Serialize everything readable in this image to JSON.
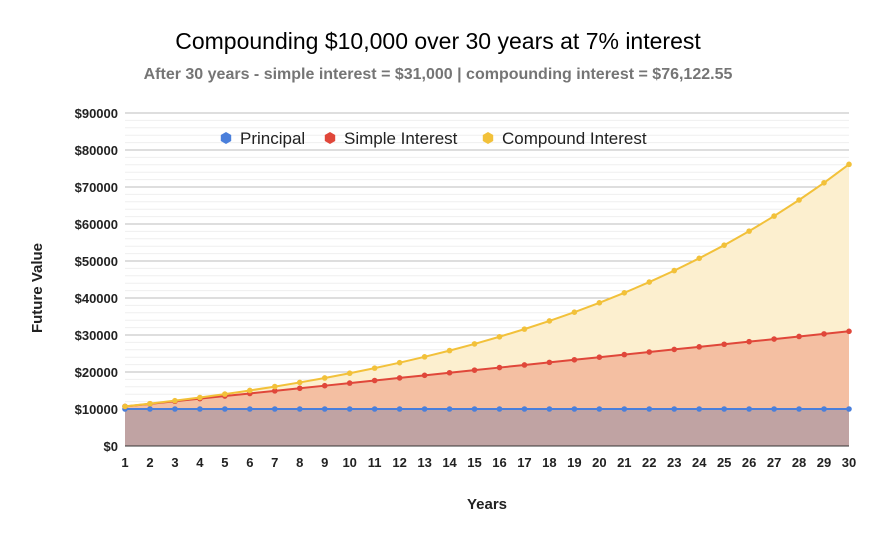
{
  "chart_data": {
    "type": "area",
    "title": "Compounding $10,000 over 30 years at 7% interest",
    "subtitle": "After 30 years  - simple interest = $31,000 | compounding interest = $76,122.55",
    "xlabel": "Years",
    "ylabel": "Future Value",
    "ylim": [
      0,
      90000
    ],
    "y_ticks": [
      "$0",
      "$10000",
      "$20000",
      "$30000",
      "$40000",
      "$50000",
      "$60000",
      "$70000",
      "$80000",
      "$90000"
    ],
    "x": [
      1,
      2,
      3,
      4,
      5,
      6,
      7,
      8,
      9,
      10,
      11,
      12,
      13,
      14,
      15,
      16,
      17,
      18,
      19,
      20,
      21,
      22,
      23,
      24,
      25,
      26,
      27,
      28,
      29,
      30
    ],
    "legend_position": "top",
    "grid": true,
    "series": [
      {
        "name": "Principal",
        "color": "#4a7fdb",
        "fill": "#c0a3a3",
        "values": [
          10000,
          10000,
          10000,
          10000,
          10000,
          10000,
          10000,
          10000,
          10000,
          10000,
          10000,
          10000,
          10000,
          10000,
          10000,
          10000,
          10000,
          10000,
          10000,
          10000,
          10000,
          10000,
          10000,
          10000,
          10000,
          10000,
          10000,
          10000,
          10000,
          10000
        ]
      },
      {
        "name": "Simple Interest",
        "color": "#e0473a",
        "fill": "#f4bfa2",
        "values": [
          10700,
          11400,
          12100,
          12800,
          13500,
          14200,
          14900,
          15600,
          16300,
          17000,
          17700,
          18400,
          19100,
          19800,
          20500,
          21200,
          21900,
          22600,
          23300,
          24000,
          24700,
          25400,
          26100,
          26800,
          27500,
          28200,
          28900,
          29600,
          30300,
          31000
        ]
      },
      {
        "name": "Compound Interest",
        "color": "#f2c13a",
        "fill": "#fcefcf",
        "values": [
          10700,
          11449,
          12250.43,
          13107.96,
          14025.52,
          15007.3,
          16057.81,
          17181.86,
          18384.59,
          19671.51,
          21048.52,
          22521.92,
          24098.45,
          25785.34,
          27590.32,
          29521.64,
          31588.15,
          33799.32,
          36165.28,
          38696.84,
          41405.62,
          44304.02,
          47405.3,
          50723.67,
          54274.33,
          58073.53,
          62138.68,
          66488.38,
          71142.57,
          76122.55
        ]
      }
    ]
  }
}
